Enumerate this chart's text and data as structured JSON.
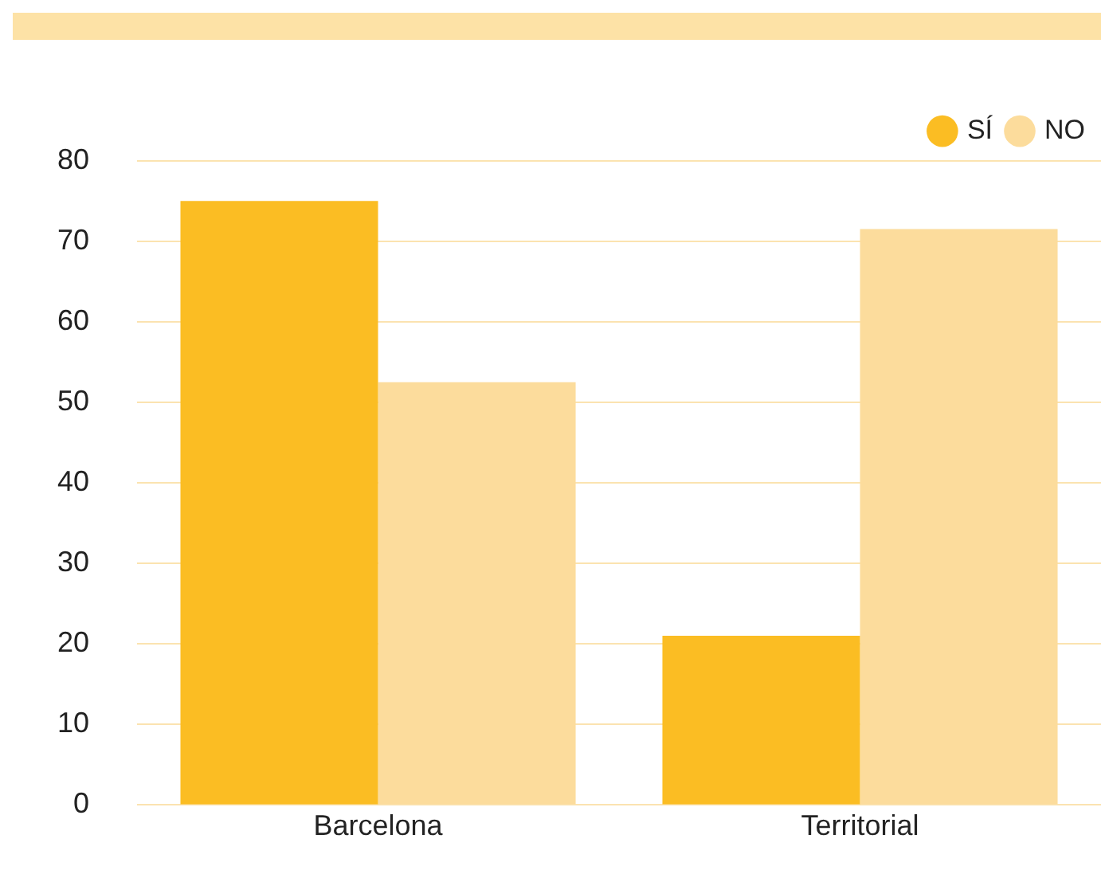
{
  "chart_data": {
    "type": "bar",
    "categories": [
      "Barcelona",
      "Territorial"
    ],
    "series": [
      {
        "name": "SÍ",
        "color": "#fbbd23",
        "values": [
          75,
          21
        ]
      },
      {
        "name": "NO",
        "color": "#fcdc9c",
        "values": [
          52.5,
          71.5
        ]
      }
    ],
    "ylim": [
      0,
      80
    ],
    "yticks": [
      0,
      10,
      20,
      30,
      40,
      50,
      60,
      70,
      80
    ],
    "grid": "y",
    "legend": "top right"
  }
}
